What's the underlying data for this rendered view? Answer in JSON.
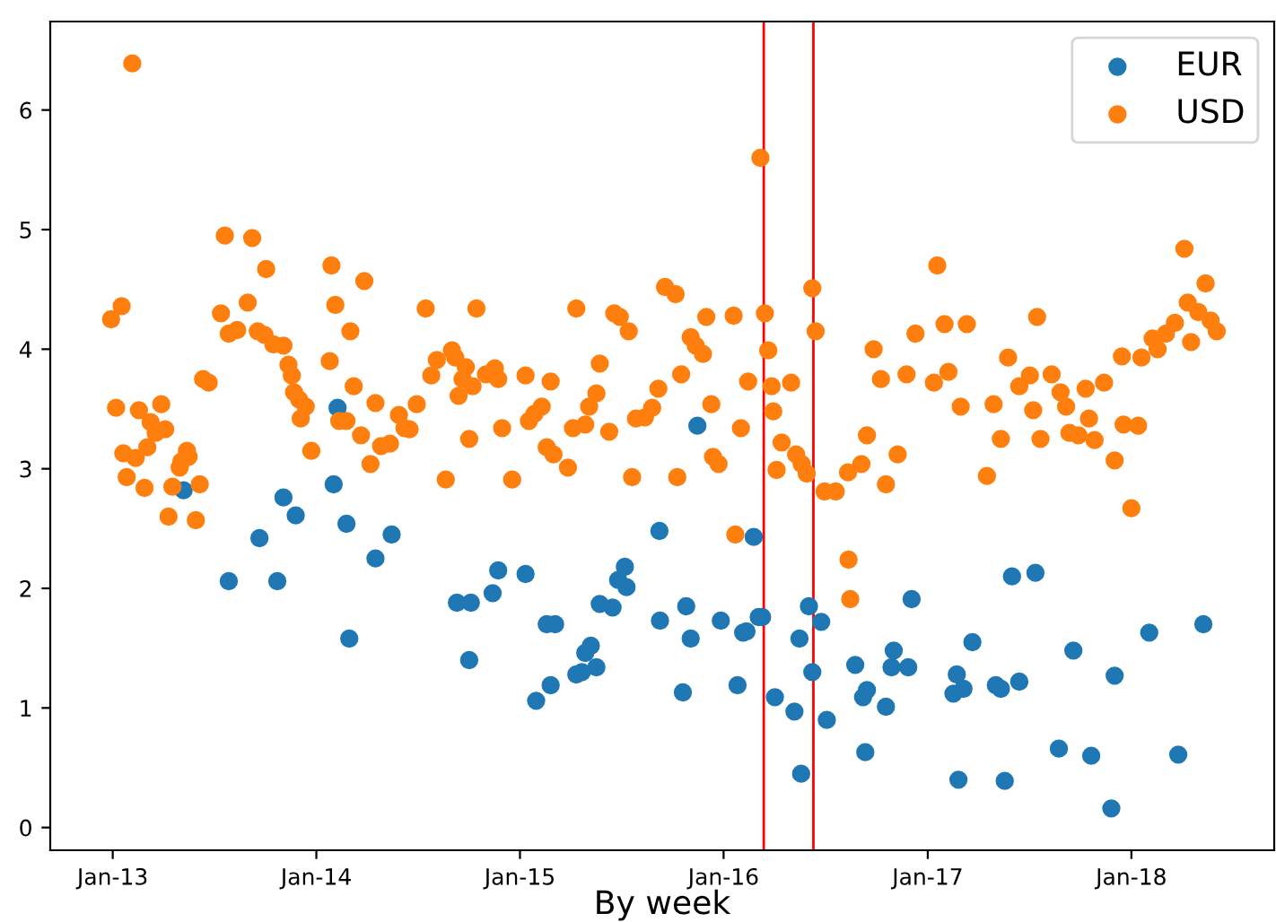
{
  "chart_data": {
    "type": "scatter",
    "xlabel": "By week",
    "legend": "top right",
    "grid": false,
    "marker": "circle",
    "xlim": [
      "2012-09-11",
      "2018-09-14"
    ],
    "ylim": [
      -0.19,
      6.74
    ],
    "xticks": [
      {
        "value": "2013-01-01",
        "label": "Jan-13"
      },
      {
        "value": "2014-01-01",
        "label": "Jan-14"
      },
      {
        "value": "2015-01-01",
        "label": "Jan-15"
      },
      {
        "value": "2016-01-01",
        "label": "Jan-16"
      },
      {
        "value": "2017-01-01",
        "label": "Jan-17"
      },
      {
        "value": "2018-01-01",
        "label": "Jan-18"
      }
    ],
    "yticks": [
      0,
      1,
      2,
      3,
      4,
      5,
      6
    ],
    "ref_lines": [
      {
        "axis": "x",
        "value": "2016-03-13",
        "color": "#ff0000"
      },
      {
        "axis": "x",
        "value": "2016-06-10",
        "color": "#ff0000"
      }
    ],
    "series": [
      {
        "name": "EUR",
        "color": "#1f77b4",
        "x": [
          "2013-05-08",
          "2013-07-28",
          "2013-09-21",
          "2013-10-23",
          "2013-11-03",
          "2013-11-25",
          "2014-02-01",
          "2014-02-08",
          "2014-02-24",
          "2014-03-01",
          "2014-04-17",
          "2014-05-16",
          "2014-09-10",
          "2014-10-02",
          "2014-10-05",
          "2014-11-13",
          "2014-11-23",
          "2015-01-11",
          "2015-01-30",
          "2015-02-18",
          "2015-03-05",
          "2015-02-25",
          "2015-04-12",
          "2015-04-22",
          "2015-04-28",
          "2015-05-08",
          "2015-05-18",
          "2015-05-24",
          "2015-06-16",
          "2015-06-26",
          "2015-07-08",
          "2015-07-11",
          "2015-09-08",
          "2015-09-09",
          "2015-10-20",
          "2015-10-26",
          "2015-11-03",
          "2015-11-15",
          "2015-12-27",
          "2016-01-26",
          "2016-02-05",
          "2016-02-11",
          "2016-02-24",
          "2016-03-04",
          "2016-03-10",
          "2016-04-02",
          "2016-05-07",
          "2016-05-19",
          "2016-05-16",
          "2016-06-02",
          "2016-06-08",
          "2016-06-24",
          "2016-07-04",
          "2016-08-24",
          "2016-09-07",
          "2016-09-14",
          "2016-09-11",
          "2016-10-18",
          "2016-10-28",
          "2016-11-01",
          "2016-11-27",
          "2016-12-03",
          "2017-02-16",
          "2017-02-22",
          "2017-02-25",
          "2017-03-06",
          "2017-03-22",
          "2017-05-03",
          "2017-05-12",
          "2017-05-19",
          "2017-06-01",
          "2017-06-14",
          "2017-07-13",
          "2017-08-24",
          "2017-09-19",
          "2017-10-21",
          "2017-11-26",
          "2017-12-02",
          "2018-02-02",
          "2018-03-26",
          "2018-05-10"
        ],
        "values": [
          2.82,
          2.06,
          2.42,
          2.06,
          2.76,
          2.61,
          2.87,
          3.51,
          2.54,
          1.58,
          2.25,
          2.45,
          1.88,
          1.4,
          1.88,
          1.96,
          2.15,
          2.12,
          1.06,
          1.7,
          1.7,
          1.19,
          1.28,
          1.3,
          1.46,
          1.52,
          1.34,
          1.87,
          1.84,
          2.07,
          2.18,
          2.01,
          2.48,
          1.73,
          1.13,
          1.85,
          1.58,
          3.36,
          1.73,
          1.19,
          1.63,
          1.64,
          2.43,
          1.76,
          1.76,
          1.09,
          0.97,
          0.45,
          1.58,
          1.85,
          1.3,
          1.72,
          0.9,
          1.36,
          1.09,
          1.15,
          0.63,
          1.01,
          1.34,
          1.48,
          1.34,
          1.91,
          1.12,
          1.28,
          0.4,
          1.16,
          1.55,
          1.19,
          1.16,
          0.39,
          2.1,
          1.22,
          2.13,
          0.66,
          1.48,
          0.6,
          0.16,
          1.27,
          1.63,
          0.61,
          1.7
        ]
      },
      {
        "name": "USD",
        "color": "#ff7f0e",
        "x": [
          "2012-12-29",
          "2013-01-17",
          "2013-01-07",
          "2013-01-20",
          "2013-01-26",
          "2013-02-05",
          "2013-02-11",
          "2013-02-17",
          "2013-02-27",
          "2013-03-04",
          "2013-03-10",
          "2013-03-19",
          "2013-03-29",
          "2013-04-05",
          "2013-04-11",
          "2013-04-18",
          "2013-05-01",
          "2013-05-04",
          "2013-05-14",
          "2013-05-17",
          "2013-05-30",
          "2013-06-06",
          "2013-06-12",
          "2013-06-22",
          "2013-07-14",
          "2013-07-21",
          "2013-07-28",
          "2013-08-12",
          "2013-08-31",
          "2013-09-08",
          "2013-09-18",
          "2013-09-30",
          "2013-10-03",
          "2013-10-16",
          "2013-11-03",
          "2013-11-12",
          "2013-11-18",
          "2013-11-22",
          "2013-12-01",
          "2013-12-04",
          "2013-12-13",
          "2013-12-23",
          "2014-01-25",
          "2014-01-28",
          "2014-02-04",
          "2014-02-11",
          "2014-02-24",
          "2014-03-03",
          "2014-03-09",
          "2014-03-22",
          "2014-03-28",
          "2014-04-08",
          "2014-04-17",
          "2014-04-27",
          "2014-05-13",
          "2014-05-29",
          "2014-06-08",
          "2014-06-17",
          "2014-06-30",
          "2014-07-16",
          "2014-07-26",
          "2014-08-05",
          "2014-08-21",
          "2014-09-01",
          "2014-09-07",
          "2014-09-13",
          "2014-09-20",
          "2014-09-26",
          "2014-10-02",
          "2014-10-08",
          "2014-10-15",
          "2014-11-01",
          "2014-11-17",
          "2014-11-23",
          "2014-11-30",
          "2014-12-18",
          "2015-01-11",
          "2015-01-17",
          "2015-01-27",
          "2015-02-09",
          "2015-02-18",
          "2015-02-25",
          "2015-03-02",
          "2015-03-28",
          "2015-04-06",
          "2015-04-12",
          "2015-04-28",
          "2015-05-05",
          "2015-05-18",
          "2015-05-24",
          "2015-06-10",
          "2015-06-19",
          "2015-06-29",
          "2015-07-15",
          "2015-07-21",
          "2015-07-28",
          "2015-08-13",
          "2015-08-26",
          "2015-09-06",
          "2015-09-18",
          "2015-10-07",
          "2015-10-10",
          "2015-10-17",
          "2015-11-03",
          "2015-11-12",
          "2015-11-25",
          "2015-12-01",
          "2015-12-10",
          "2015-12-13",
          "2015-12-23",
          "2016-01-19",
          "2016-01-22",
          "2016-02-01",
          "2016-02-14",
          "2016-03-07",
          "2016-03-15",
          "2016-03-21",
          "2016-03-27",
          "2016-03-30",
          "2016-04-05",
          "2016-04-14",
          "2016-05-01",
          "2016-05-10",
          "2016-05-20",
          "2016-05-29",
          "2016-06-08",
          "2016-06-14",
          "2016-06-30",
          "2016-07-20",
          "2016-08-12",
          "2016-08-15",
          "2016-08-11",
          "2016-09-04",
          "2016-09-14",
          "2016-09-26",
          "2016-10-09",
          "2016-10-18",
          "2016-11-08",
          "2016-11-24",
          "2016-12-10",
          "2017-01-12",
          "2017-01-18",
          "2017-01-31",
          "2017-02-07",
          "2017-03-01",
          "2017-03-12",
          "2017-04-17",
          "2017-04-29",
          "2017-05-12",
          "2017-05-25",
          "2017-06-14",
          "2017-07-03",
          "2017-07-09",
          "2017-07-16",
          "2017-07-22",
          "2017-08-11",
          "2017-08-27",
          "2017-09-06",
          "2017-09-12",
          "2017-09-28",
          "2017-10-11",
          "2017-10-17",
          "2017-10-27",
          "2017-11-13",
          "2017-12-02",
          "2017-12-18",
          "2018-01-01",
          "2017-12-15",
          "2018-01-13",
          "2018-01-19",
          "2018-02-08",
          "2018-02-17",
          "2018-03-04",
          "2018-03-20",
          "2018-04-06",
          "2018-04-12",
          "2018-04-18",
          "2018-05-01",
          "2018-05-14",
          "2018-05-23",
          "2018-06-03"
        ],
        "values": [
          4.25,
          4.36,
          3.51,
          3.13,
          2.93,
          6.39,
          3.09,
          3.49,
          2.84,
          3.18,
          3.39,
          3.3,
          3.54,
          3.33,
          2.6,
          2.85,
          3.01,
          3.06,
          3.15,
          3.1,
          2.57,
          2.87,
          3.75,
          3.72,
          4.3,
          4.95,
          4.13,
          4.16,
          4.39,
          4.93,
          4.15,
          4.12,
          4.67,
          4.04,
          4.03,
          3.87,
          3.78,
          3.64,
          3.58,
          3.42,
          3.52,
          3.15,
          3.9,
          4.7,
          4.37,
          3.4,
          3.4,
          4.15,
          3.69,
          3.28,
          4.57,
          3.04,
          3.55,
          3.19,
          3.21,
          3.45,
          3.34,
          3.33,
          3.54,
          4.34,
          3.78,
          3.91,
          2.91,
          3.99,
          3.93,
          3.61,
          3.75,
          3.85,
          3.25,
          3.69,
          4.34,
          3.79,
          3.84,
          3.75,
          3.34,
          2.91,
          3.78,
          3.4,
          3.46,
          3.52,
          3.18,
          3.73,
          3.12,
          3.01,
          3.34,
          4.34,
          3.37,
          3.52,
          3.63,
          3.88,
          3.31,
          4.3,
          4.27,
          4.15,
          2.93,
          3.42,
          3.43,
          3.51,
          3.67,
          4.52,
          4.46,
          2.93,
          3.79,
          4.1,
          4.03,
          3.96,
          4.27,
          3.54,
          3.1,
          3.04,
          4.28,
          2.45,
          3.34,
          3.73,
          5.6,
          4.3,
          3.99,
          3.69,
          3.48,
          2.99,
          3.22,
          3.72,
          3.12,
          3.04,
          2.96,
          4.51,
          4.15,
          2.81,
          2.81,
          2.24,
          1.91,
          2.97,
          3.04,
          3.28,
          4.0,
          3.75,
          2.87,
          3.12,
          3.79,
          4.13,
          3.72,
          4.7,
          4.21,
          3.81,
          3.52,
          4.21,
          2.94,
          3.54,
          3.25,
          3.93,
          3.69,
          3.78,
          3.49,
          4.27,
          3.25,
          3.79,
          3.64,
          3.52,
          3.3,
          3.28,
          3.67,
          3.42,
          3.24,
          3.72,
          3.07,
          3.37,
          2.67,
          3.94,
          3.36,
          3.93,
          4.09,
          4.0,
          4.13,
          4.22,
          4.84,
          4.39,
          4.06,
          4.31,
          4.55,
          4.24,
          4.15
        ]
      }
    ]
  }
}
